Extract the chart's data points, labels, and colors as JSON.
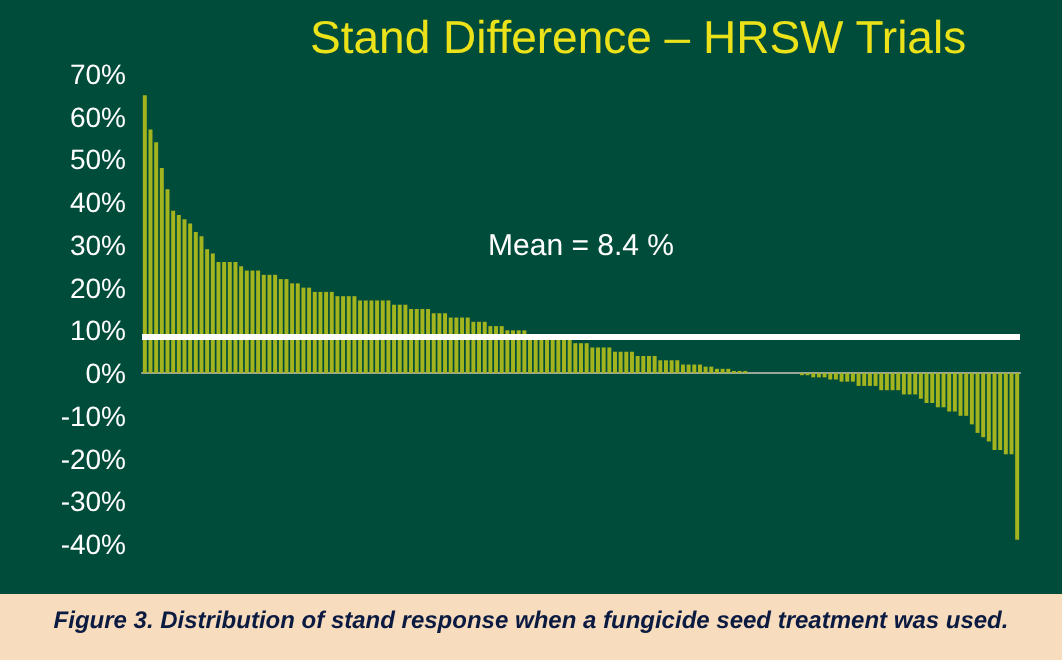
{
  "chart_data": {
    "type": "bar",
    "title": "Stand Difference – HRSW Trials",
    "categories": [
      null,
      null,
      null,
      null,
      null,
      null,
      null,
      null,
      null,
      null,
      null,
      null,
      null,
      null,
      null,
      null,
      null,
      null,
      null,
      null,
      null,
      null,
      null,
      null,
      null,
      null,
      null,
      null,
      null,
      null,
      null,
      null,
      null,
      null,
      null,
      null,
      null,
      null,
      null,
      null,
      null,
      null,
      null,
      null,
      null,
      null,
      null,
      null,
      null,
      null,
      null,
      null,
      null,
      null,
      null,
      null,
      null,
      null,
      null,
      null,
      null,
      null,
      null,
      null,
      null,
      null,
      null,
      null,
      null,
      null,
      null,
      null,
      null,
      null,
      null,
      null,
      null,
      null,
      null,
      null,
      null,
      null,
      null,
      null,
      null,
      null,
      null,
      null,
      null,
      null,
      null,
      null,
      null,
      null,
      null,
      null,
      null,
      null,
      null,
      null,
      null,
      null,
      null,
      null,
      null,
      null,
      null,
      null,
      null,
      null,
      null,
      null,
      null,
      null,
      null,
      null,
      null,
      null,
      null,
      null,
      null,
      null,
      null,
      null,
      null,
      null,
      null,
      null,
      null,
      null,
      null,
      null,
      null,
      null,
      null,
      null,
      null,
      null,
      null,
      null,
      null,
      null,
      null,
      null,
      null,
      null,
      null,
      null,
      null,
      null,
      null,
      null,
      null,
      null,
      null
    ],
    "values": [
      65,
      57,
      54,
      48,
      43,
      38,
      37,
      36,
      35,
      33,
      32,
      29,
      28,
      26,
      26,
      26,
      26,
      25,
      24,
      24,
      24,
      23,
      23,
      23,
      22,
      22,
      21,
      21,
      20,
      20,
      19,
      19,
      19,
      19,
      18,
      18,
      18,
      18,
      17,
      17,
      17,
      17,
      17,
      17,
      16,
      16,
      16,
      15,
      15,
      15,
      15,
      14,
      14,
      14,
      13,
      13,
      13,
      13,
      12,
      12,
      12,
      11,
      11,
      11,
      10,
      10,
      10,
      10,
      9,
      9,
      9,
      9,
      8,
      8,
      8,
      8,
      7,
      7,
      7,
      6,
      6,
      6,
      6,
      5,
      5,
      5,
      5,
      4,
      4,
      4,
      4,
      3,
      3,
      3,
      3,
      2,
      2,
      2,
      2,
      1.5,
      1.5,
      1,
      1,
      1,
      0.5,
      0.5,
      0.5,
      0,
      0,
      0,
      0,
      0,
      0,
      0,
      0,
      0,
      -0.5,
      -0.5,
      -1,
      -1,
      -1,
      -1.5,
      -1.5,
      -2,
      -2,
      -2,
      -3,
      -3,
      -3,
      -3,
      -4,
      -4,
      -4,
      -4,
      -5,
      -5,
      -5,
      -6,
      -7,
      -7,
      -8,
      -8,
      -9,
      -9,
      -10,
      -10,
      -12,
      -14,
      -15,
      -16,
      -18,
      -18,
      -19,
      -19,
      -39
    ],
    "color": "#a3b41e",
    "ylim": [
      -40,
      70
    ],
    "yticks": [
      {
        "value": -40,
        "label": "-40%"
      },
      {
        "value": -30,
        "label": "-30%"
      },
      {
        "value": -20,
        "label": "-20%"
      },
      {
        "value": -10,
        "label": "-10%"
      },
      {
        "value": 0,
        "label": "0%"
      },
      {
        "value": 10,
        "label": "10%"
      },
      {
        "value": 20,
        "label": "20%"
      },
      {
        "value": 30,
        "label": "30%"
      },
      {
        "value": 40,
        "label": "40%"
      },
      {
        "value": 50,
        "label": "50%"
      },
      {
        "value": 60,
        "label": "60%"
      },
      {
        "value": 70,
        "label": "70%"
      }
    ],
    "grid": false,
    "ref_lines": [
      {
        "axis": "y",
        "value": 8.4,
        "label": "Mean = 8.4 %",
        "color": "#ffffff"
      }
    ],
    "annotations": [
      "Figure 3. Distribution of stand response when a fungicide seed treatment was used."
    ]
  }
}
